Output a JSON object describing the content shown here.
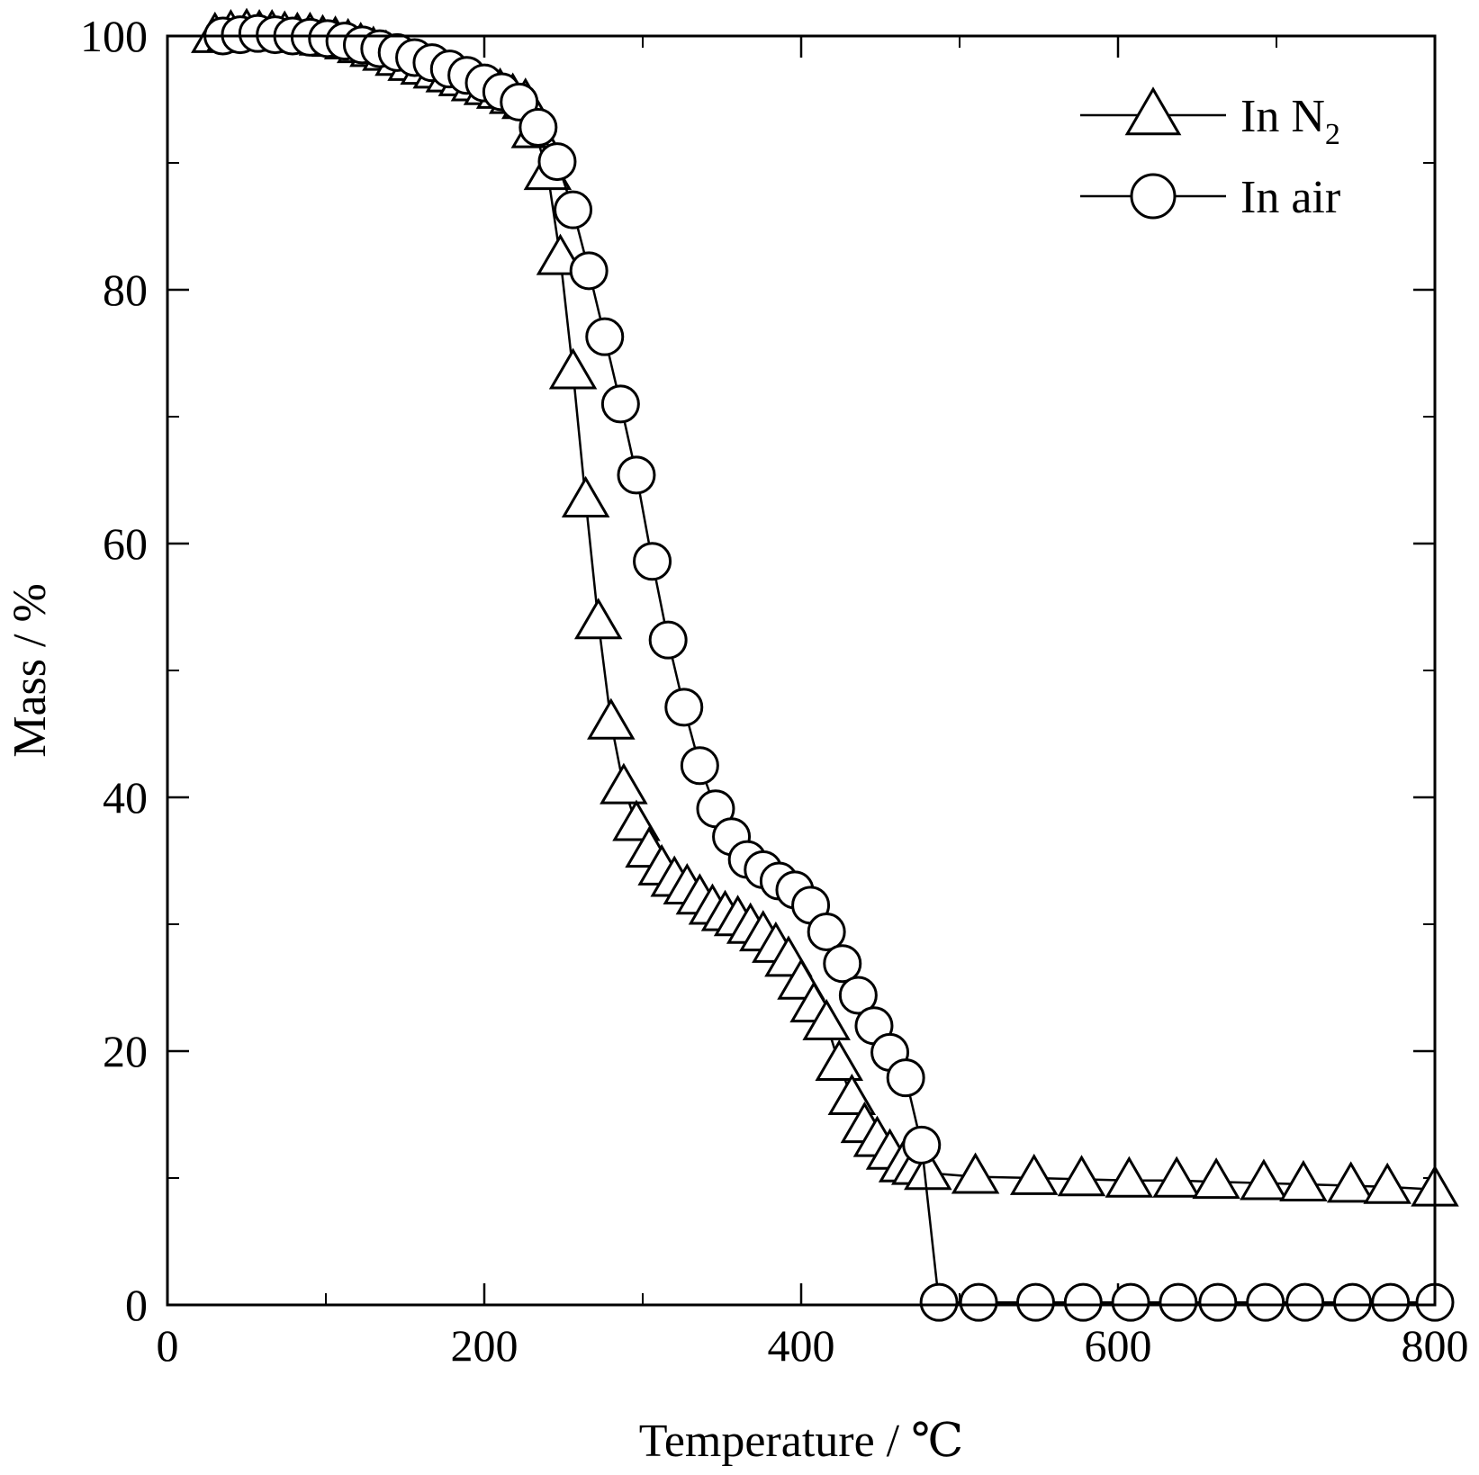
{
  "chart_data": {
    "type": "line",
    "xlabel": "Temperature / ℃",
    "ylabel": "Mass / %",
    "xlim": [
      0,
      800
    ],
    "ylim": [
      0,
      100
    ],
    "x_ticks": [
      0,
      200,
      400,
      600,
      800
    ],
    "y_ticks": [
      0,
      20,
      40,
      60,
      80,
      100
    ],
    "x_minor_step": 100,
    "y_minor_step": 10,
    "grid": false,
    "legend_position": "top-right",
    "series": [
      {
        "name": "In N2",
        "legend_main": "In N",
        "legend_sub": "2",
        "marker": "triangle",
        "color": "#000000",
        "x": [
          30,
          40,
          50,
          58,
          66,
          74,
          82,
          90,
          98,
          106,
          114,
          122,
          130,
          138,
          146,
          154,
          162,
          170,
          178,
          186,
          194,
          202,
          210,
          218,
          226,
          232,
          240,
          248,
          256,
          264,
          272,
          280,
          288,
          296,
          304,
          312,
          320,
          328,
          336,
          344,
          352,
          360,
          368,
          376,
          384,
          392,
          400,
          408,
          416,
          424,
          432,
          440,
          448,
          456,
          464,
          472,
          480,
          510,
          547,
          577,
          607,
          637,
          662,
          692,
          717,
          747,
          770,
          800
        ],
        "y": [
          100,
          100.2,
          100.3,
          100.2,
          100.2,
          100.1,
          100,
          100,
          99.8,
          99.7,
          99.5,
          99.2,
          98.9,
          98.6,
          98.2,
          97.8,
          97.5,
          97.2,
          96.9,
          96.6,
          96.2,
          95.9,
          95.6,
          95.2,
          94.8,
          92.5,
          89.2,
          82.5,
          73.5,
          63.4,
          53.8,
          45.9,
          40.8,
          37.9,
          35.8,
          34.4,
          33.5,
          32.9,
          32.1,
          31.3,
          30.8,
          30.4,
          29.8,
          29.2,
          28.3,
          27.2,
          25.4,
          23.6,
          22.2,
          19.0,
          16.3,
          14.1,
          13.0,
          12.0,
          11.0,
          10.8,
          10.4,
          10.1,
          10.0,
          9.9,
          9.8,
          9.8,
          9.7,
          9.6,
          9.5,
          9.4,
          9.3,
          9.1
        ]
      },
      {
        "name": "In air",
        "legend_main": "In air",
        "legend_sub": "",
        "marker": "circle",
        "color": "#000000",
        "x": [
          35,
          46,
          57,
          68,
          79,
          90,
          101,
          112,
          123,
          134,
          145,
          156,
          167,
          178,
          189,
          200,
          211,
          222,
          234,
          246,
          256,
          266,
          276,
          286,
          296,
          306,
          316,
          326,
          336,
          346,
          356,
          366,
          376,
          386,
          396,
          406,
          416,
          426,
          436,
          446,
          456,
          466,
          476,
          487,
          512,
          548,
          578,
          608,
          638,
          663,
          693,
          718,
          748,
          772,
          800
        ],
        "y": [
          100,
          100.1,
          100.2,
          100.1,
          100,
          99.9,
          99.8,
          99.6,
          99.3,
          99.0,
          98.7,
          98.3,
          97.9,
          97.4,
          96.9,
          96.3,
          95.6,
          94.8,
          92.8,
          90.1,
          86.3,
          81.5,
          76.3,
          71.0,
          65.4,
          58.6,
          52.4,
          47.1,
          42.5,
          39.1,
          36.9,
          35.1,
          34.3,
          33.4,
          32.7,
          31.5,
          29.4,
          26.9,
          24.4,
          22.0,
          19.9,
          17.9,
          12.6,
          0.2,
          0.2,
          0.2,
          0.2,
          0.2,
          0.2,
          0.2,
          0.2,
          0.2,
          0.2,
          0.2,
          0.2
        ]
      }
    ]
  }
}
